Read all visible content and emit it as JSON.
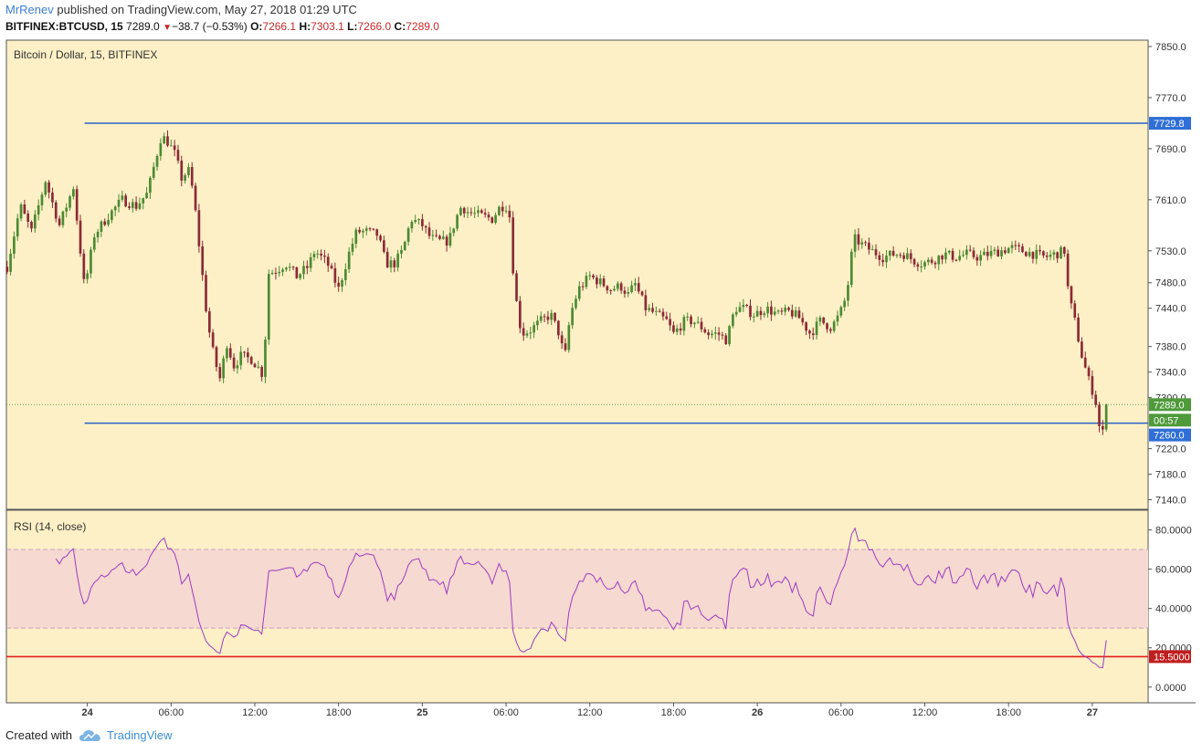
{
  "header": {
    "author": "MrRenev",
    "published": "published on TradingView.com, May 27, 2018 01:29 UTC",
    "symbol": "BITFINEX:BTCUSD, 15",
    "last": "7289.0",
    "change": "−38.7 (−0.53%)",
    "o_label": "O:",
    "o_val": "7266.1",
    "h_label": "H:",
    "h_val": "7303.1",
    "l_label": "L:",
    "l_val": "7266.0",
    "c_label": "C:",
    "c_val": "7289.0",
    "down_arrow": "▼"
  },
  "footer": {
    "created_with": "Created with",
    "brand": "TradingView",
    "logo_icon": "tradingview-cloud-icon"
  },
  "colors": {
    "panel_bg": "#fdf0c6",
    "up": "#4c8a33",
    "down": "#8b2a35",
    "level_line": "#2962c9",
    "rsi_line": "#9c3cc2",
    "rsi_band": "#f6d9d0",
    "rsi_level": "#e0201e",
    "price_tag": "#4f9a3b",
    "level_tag": "#2f6fd6",
    "rsi_tag": "#c01d1d"
  },
  "chart_data": [
    {
      "type": "candlestick",
      "title": "Bitcoin / Dollar, 15, BITFINEX",
      "ylim": [
        7125,
        7860
      ],
      "y_ticks": [
        "7850.0",
        "7770.0",
        "7690.0",
        "7610.0",
        "7530.0",
        "7480.0",
        "7440.0",
        "7380.0",
        "7340.0",
        "7300.0",
        "7220.0",
        "7180.0",
        "7140.0"
      ],
      "x_ticks": [
        "24",
        "06:00",
        "12:00",
        "18:00",
        "25",
        "06:00",
        "12:00",
        "18:00",
        "26",
        "06:00",
        "12:00",
        "18:00",
        "27"
      ],
      "x_tick_hours": [
        0,
        6,
        12,
        18,
        24,
        30,
        36,
        42,
        48,
        54,
        60,
        66,
        72
      ],
      "x_range_hours": [
        -5.8,
        76.0
      ],
      "bar_interval_hours": 0.25,
      "close_anchors": [
        [
          -5.75,
          7505
        ],
        [
          -4.8,
          7600
        ],
        [
          -4.0,
          7560
        ],
        [
          -3.0,
          7640
        ],
        [
          -2.0,
          7570
        ],
        [
          -1.0,
          7630
        ],
        [
          -0.2,
          7470
        ],
        [
          0.5,
          7555
        ],
        [
          1.5,
          7585
        ],
        [
          2.5,
          7610
        ],
        [
          3.5,
          7600
        ],
        [
          4.3,
          7620
        ],
        [
          4.8,
          7665
        ],
        [
          5.3,
          7710
        ],
        [
          5.8,
          7700
        ],
        [
          6.3,
          7680
        ],
        [
          6.8,
          7640
        ],
        [
          7.2,
          7660
        ],
        [
          7.6,
          7620
        ],
        [
          8.1,
          7520
        ],
        [
          8.6,
          7420
        ],
        [
          9.1,
          7360
        ],
        [
          9.5,
          7330
        ],
        [
          10.0,
          7385
        ],
        [
          10.5,
          7350
        ],
        [
          11.0,
          7365
        ],
        [
          11.8,
          7360
        ],
        [
          12.3,
          7345
        ],
        [
          12.6,
          7335
        ],
        [
          13.0,
          7495
        ],
        [
          13.6,
          7500
        ],
        [
          14.2,
          7510
        ],
        [
          15.0,
          7490
        ],
        [
          15.8,
          7505
        ],
        [
          16.3,
          7530
        ],
        [
          17.2,
          7510
        ],
        [
          18.0,
          7470
        ],
        [
          18.8,
          7530
        ],
        [
          19.3,
          7560
        ],
        [
          20.0,
          7560
        ],
        [
          20.8,
          7555
        ],
        [
          21.4,
          7510
        ],
        [
          22.0,
          7510
        ],
        [
          22.6,
          7530
        ],
        [
          23.2,
          7580
        ],
        [
          24.0,
          7570
        ],
        [
          24.6,
          7550
        ],
        [
          25.2,
          7545
        ],
        [
          25.9,
          7545
        ],
        [
          26.4,
          7580
        ],
        [
          26.8,
          7600
        ],
        [
          27.3,
          7590
        ],
        [
          28.2,
          7585
        ],
        [
          29.0,
          7580
        ],
        [
          29.6,
          7600
        ],
        [
          30.2,
          7600
        ],
        [
          30.6,
          7470
        ],
        [
          31.1,
          7400
        ],
        [
          31.7,
          7405
        ],
        [
          32.5,
          7420
        ],
        [
          33.2,
          7430
        ],
        [
          33.8,
          7400
        ],
        [
          34.2,
          7360
        ],
        [
          34.6,
          7430
        ],
        [
          35.2,
          7470
        ],
        [
          36.0,
          7490
        ],
        [
          36.8,
          7480
        ],
        [
          37.5,
          7470
        ],
        [
          38.2,
          7475
        ],
        [
          38.8,
          7460
        ],
        [
          39.2,
          7480
        ],
        [
          40.0,
          7440
        ],
        [
          40.8,
          7430
        ],
        [
          41.5,
          7420
        ],
        [
          42.0,
          7400
        ],
        [
          42.8,
          7420
        ],
        [
          43.4,
          7420
        ],
        [
          44.0,
          7410
        ],
        [
          44.5,
          7400
        ],
        [
          45.2,
          7400
        ],
        [
          45.8,
          7390
        ],
        [
          46.4,
          7440
        ],
        [
          47.0,
          7440
        ],
        [
          47.8,
          7430
        ],
        [
          48.6,
          7440
        ],
        [
          49.5,
          7430
        ],
        [
          50.3,
          7435
        ],
        [
          51.0,
          7425
        ],
        [
          51.8,
          7400
        ],
        [
          52.5,
          7420
        ],
        [
          53.3,
          7410
        ],
        [
          53.9,
          7430
        ],
        [
          54.4,
          7460
        ],
        [
          54.9,
          7550
        ],
        [
          55.5,
          7540
        ],
        [
          56.2,
          7530
        ],
        [
          57.0,
          7520
        ],
        [
          57.8,
          7525
        ],
        [
          58.5,
          7525
        ],
        [
          59.2,
          7515
        ],
        [
          59.8,
          7510
        ],
        [
          60.6,
          7515
        ],
        [
          61.4,
          7525
        ],
        [
          62.2,
          7520
        ],
        [
          63.0,
          7525
        ],
        [
          63.8,
          7520
        ],
        [
          64.6,
          7525
        ],
        [
          65.4,
          7530
        ],
        [
          66.2,
          7535
        ],
        [
          67.0,
          7530
        ],
        [
          67.8,
          7525
        ],
        [
          68.6,
          7520
        ],
        [
          69.4,
          7525
        ],
        [
          70.0,
          7530
        ],
        [
          70.3,
          7460
        ],
        [
          70.8,
          7415
        ],
        [
          71.2,
          7370
        ],
        [
          71.7,
          7330
        ],
        [
          72.2,
          7300
        ],
        [
          72.6,
          7240
        ],
        [
          72.9,
          7250
        ],
        [
          73.2,
          7289
        ]
      ],
      "levels": [
        7729.8,
        7260.0
      ],
      "level_labels": [
        "7729.8",
        "7260.0"
      ],
      "level_x_start_hours": -0.2,
      "last_price": 7289.0,
      "last_price_label": "7289.0",
      "countdown_label": "00:57"
    },
    {
      "type": "line",
      "title": "RSI (14, close)",
      "series": [
        {
          "name": "RSI (14, close)",
          "period": 14
        }
      ],
      "ylim": [
        -8,
        90
      ],
      "y_ticks": [
        "80.0000",
        "60.0000",
        "40.0000",
        "20.0000",
        "0.0000"
      ],
      "band": [
        30,
        70
      ],
      "level": 15.5,
      "level_label": "15.5000"
    }
  ]
}
